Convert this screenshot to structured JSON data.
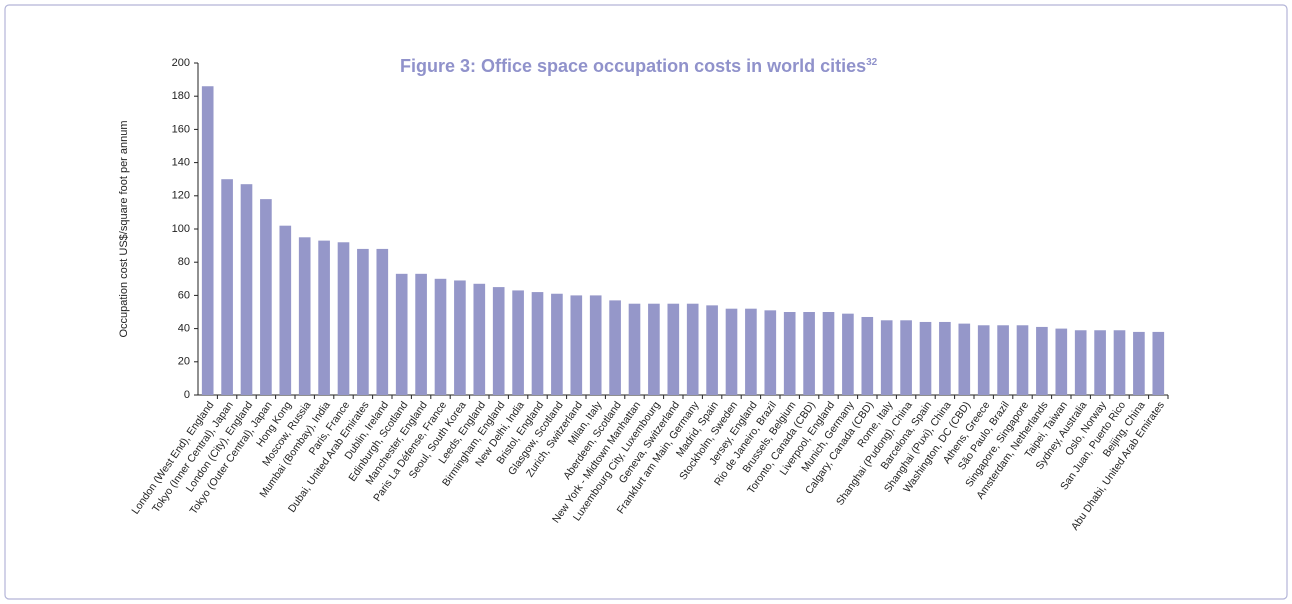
{
  "chart_data": {
    "type": "bar",
    "title": "Figure 3: Office space occupation costs in world cities",
    "title_superscript": "32",
    "y_label": "Occupation cost US$/square foot per annum",
    "categories": [
      "London (West End), England",
      "Tokyo (Inner Central), Japan",
      "London (City), England",
      "Tokyo (Outer Central), Japan",
      "Hong Kong",
      "Moscow, Russia",
      "Mumbai (Bombay), India",
      "Paris, France",
      "Dubai, United Arab Emirates",
      "Dublin, Ireland",
      "Edinburgh, Scotland",
      "Manchester, England",
      "Paris La Défense, France",
      "Seoul, South Korea",
      "Leeds, England",
      "Birmingham, England",
      "New Delhi, India",
      "Bristol, England",
      "Glasgow, Scotland",
      "Zurich, Switzerland",
      "Milan, Italy",
      "Aberdeen, Scotland",
      "New York - Midtown Manhattan",
      "Luxembourg City, Luxembourg",
      "Geneva, Switzerland",
      "Frankfurt am Main, Germany",
      "Madrid, Spain",
      "Stockholm, Sweden",
      "Jersey, England",
      "Rio de Janeiro, Brazil",
      "Brussels, Belgium",
      "Toronto, Canada (CBD)",
      "Liverpool, England",
      "Munich, Germany",
      "Calgary, Canada (CBD)",
      "Rome, Italy",
      "Shanghai (Pudong), China",
      "Barcelona, Spain",
      "Shanghai (Puxi), China",
      "Washington, DC (CBD)",
      "Athens, Greece",
      "São Paulo, Brazil",
      "Singapore, Singapore",
      "Amsterdam, Netherlands",
      "Taipei, Taiwan",
      "Sydney, Australia",
      "Oslo, Norway",
      "San Juan, Puerto Rico",
      "Beijing, China",
      "Abu Dhabi, United Arab Emirates"
    ],
    "values": [
      186,
      130,
      127,
      118,
      102,
      95,
      93,
      92,
      88,
      88,
      73,
      73,
      70,
      69,
      67,
      65,
      63,
      62,
      61,
      60,
      60,
      57,
      55,
      55,
      55,
      55,
      54,
      52,
      52,
      51,
      50,
      50,
      50,
      49,
      47,
      45,
      45,
      44,
      44,
      43,
      42,
      42,
      42,
      41,
      40,
      39,
      39,
      39,
      38,
      38
    ],
    "color": "#9597c9",
    "ylim": [
      0,
      200
    ],
    "yticks": [
      0,
      20,
      40,
      60,
      80,
      100,
      120,
      140,
      160,
      180,
      200
    ]
  }
}
